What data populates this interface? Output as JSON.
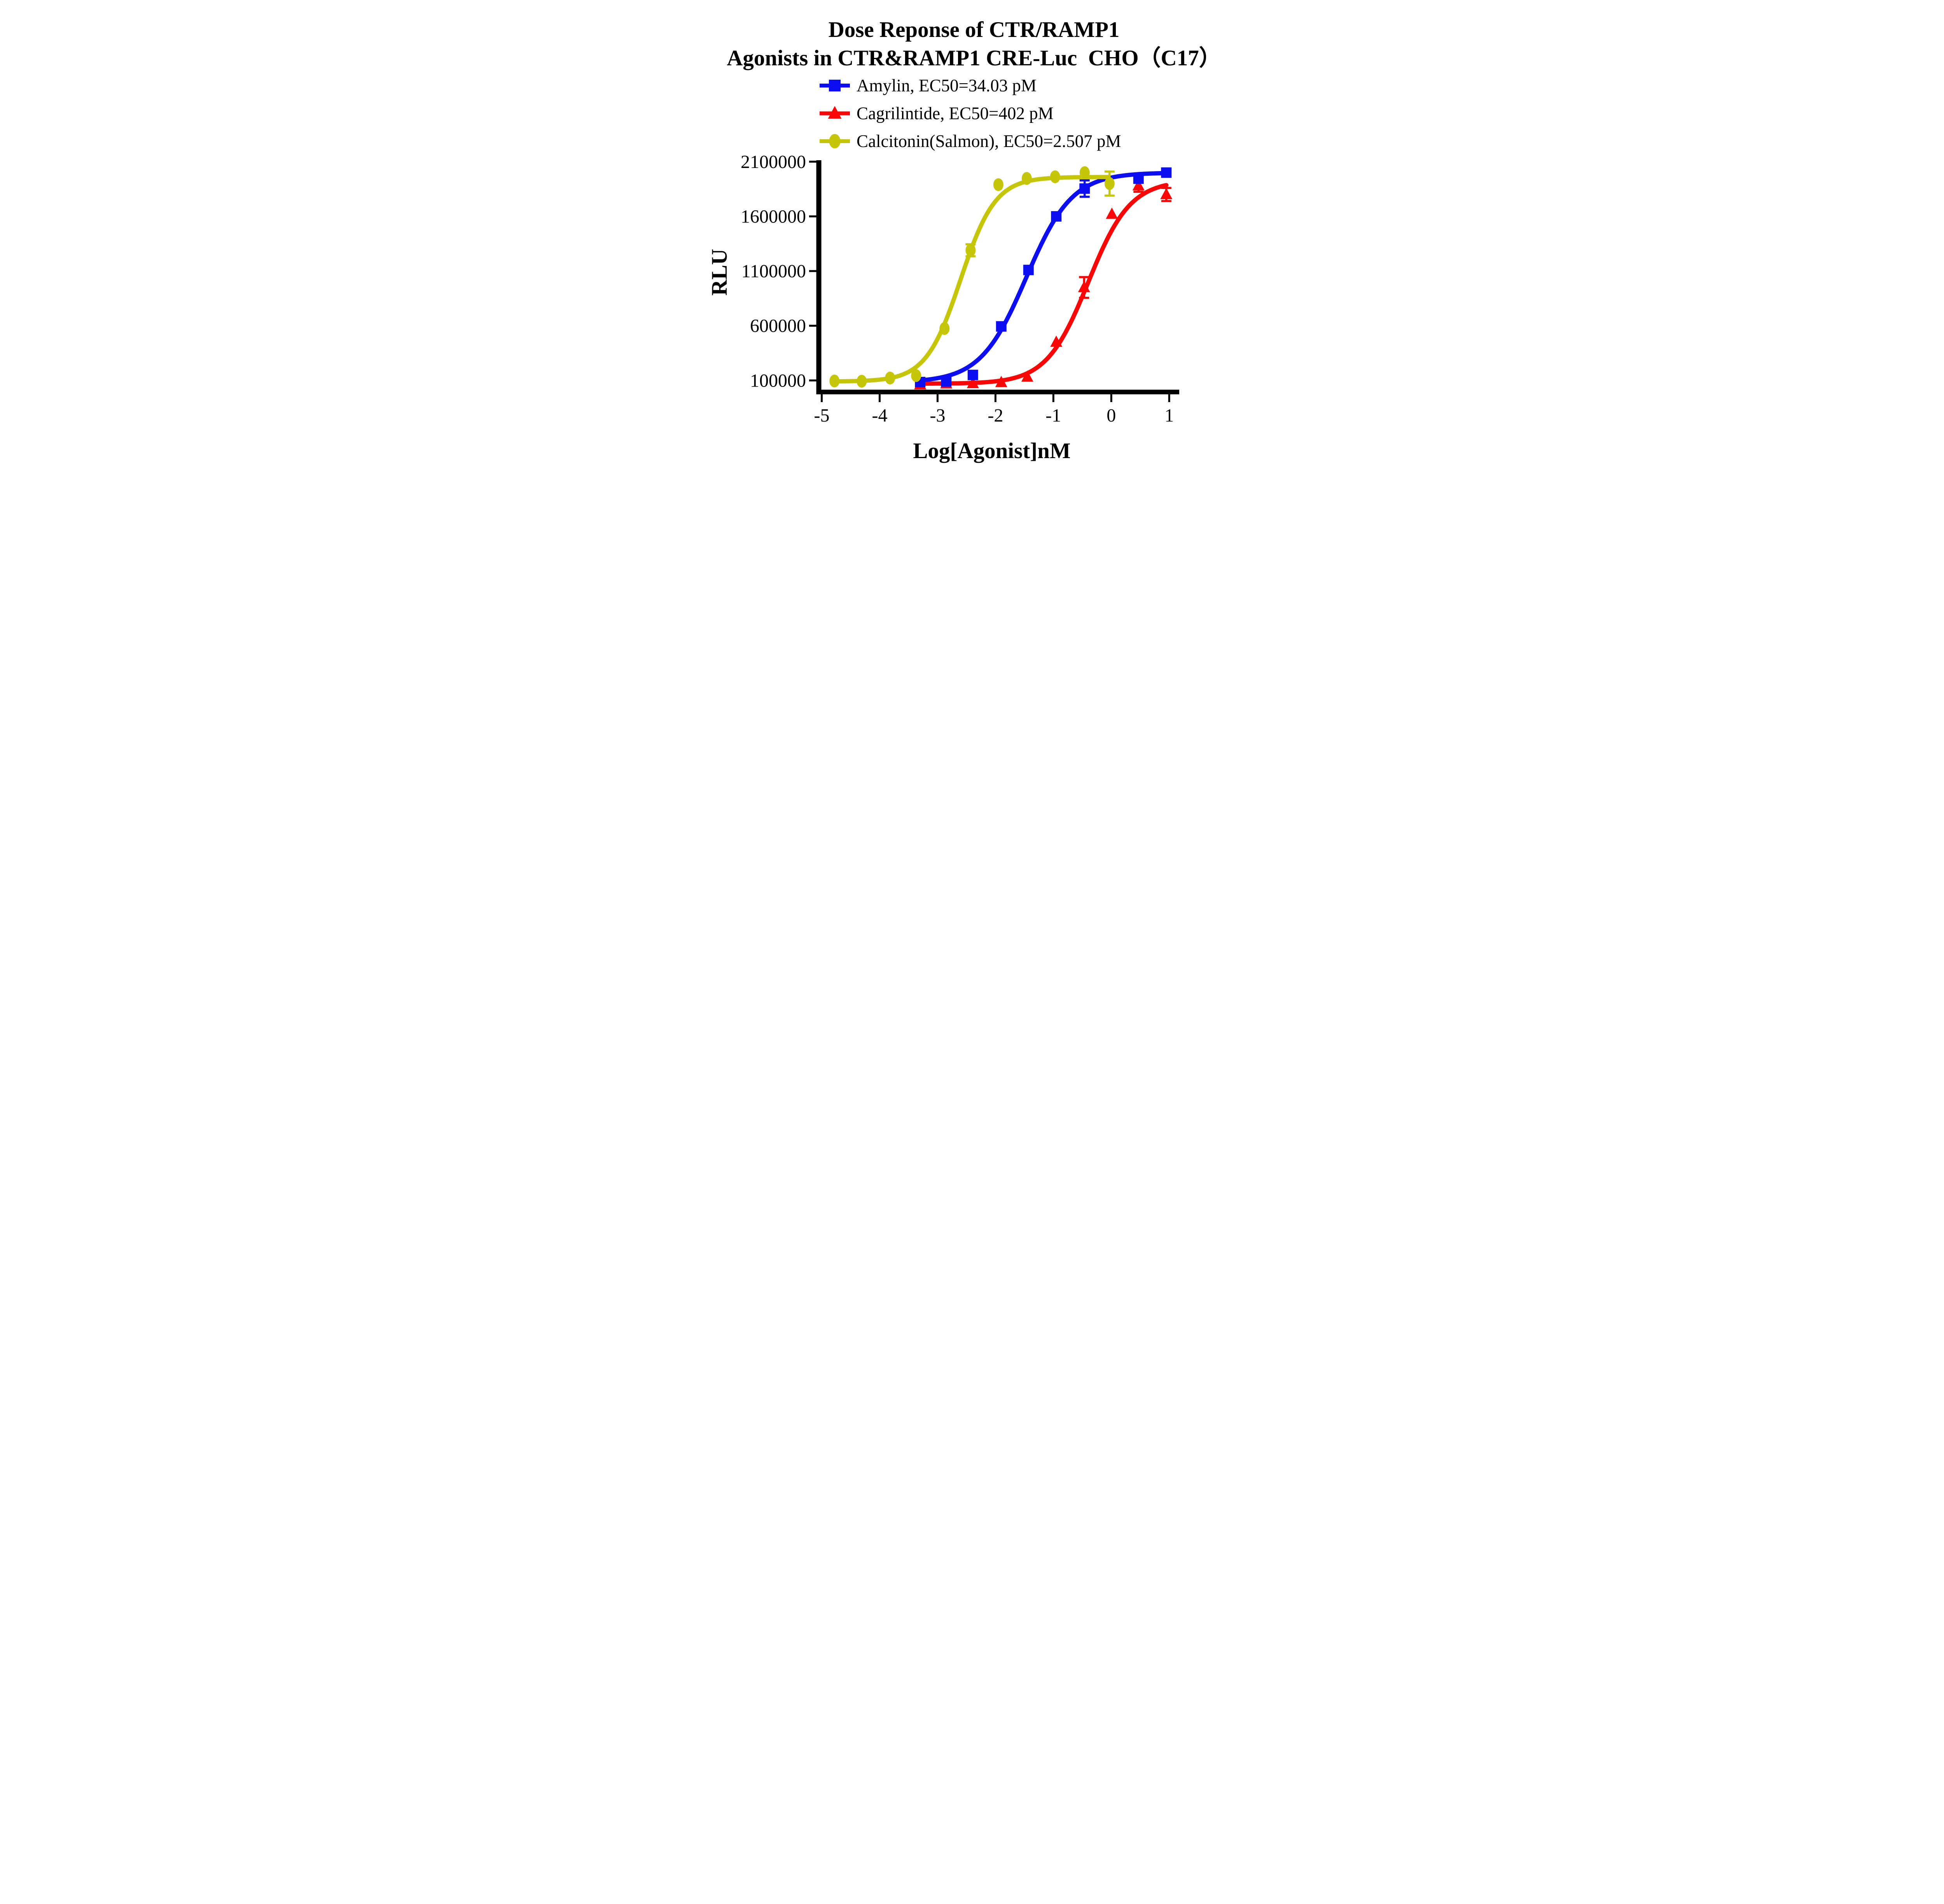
{
  "title": {
    "line1": "Dose Reponse of CTR/RAMP1",
    "line2": "Agonists in CTR&RAMP1 CRE-Luc  CHO（C17）"
  },
  "chart_data": {
    "type": "line",
    "title": "Dose Reponse of CTR/RAMP1 Agonists in CTR&RAMP1 CRE-Luc CHO（C17）",
    "xlabel": "Log[Agonist]nM",
    "ylabel": "RLU",
    "xlim": [
      -5,
      1.17
    ],
    "ylim": [
      100000,
      2100000
    ],
    "grid": false,
    "legend_position": "top",
    "xticks": [
      {
        "value": -5,
        "label": "-5"
      },
      {
        "value": -4,
        "label": "-4"
      },
      {
        "value": -3,
        "label": "-3"
      },
      {
        "value": -2,
        "label": "-2"
      },
      {
        "value": -1,
        "label": "-1"
      },
      {
        "value": 0,
        "label": "0"
      },
      {
        "value": 1,
        "label": "1"
      }
    ],
    "yticks": [
      {
        "value": 100000,
        "label": "100000"
      },
      {
        "value": 600000,
        "label": "600000"
      },
      {
        "value": 1100000,
        "label": "1100000"
      },
      {
        "value": 1600000,
        "label": "1600000"
      },
      {
        "value": 2100000,
        "label": "2100000"
      }
    ],
    "series": [
      {
        "id": "cagrilintide",
        "name": "Cagrilintide",
        "legend_label": "Cagrilintide,  EC50=402 pM",
        "ec50": "402 pM",
        "color": "#FA0606",
        "marker": "triangle",
        "points": [
          {
            "x": -3.3,
            "y": 62000
          },
          {
            "x": -2.85,
            "y": 70000
          },
          {
            "x": -2.39,
            "y": 72000
          },
          {
            "x": -1.9,
            "y": 82000
          },
          {
            "x": -1.45,
            "y": 131000
          },
          {
            "x": -0.95,
            "y": 450000
          },
          {
            "x": -0.47,
            "y": 950000,
            "err": 95000
          },
          {
            "x": 0.01,
            "y": 1620000
          },
          {
            "x": 0.47,
            "y": 1880000,
            "err": 55000
          },
          {
            "x": 0.95,
            "y": 1800000,
            "err": 60000
          }
        ],
        "fit_curve": {
          "bottom": 70000,
          "top": 1930000,
          "logEC50": -0.396,
          "hill": 1.2,
          "xmin": -3.34,
          "xmax": 0.97
        }
      },
      {
        "id": "amylin",
        "name": "Amylin",
        "legend_label": "Amylin,  EC50=34.03 pM",
        "ec50": "34.03 pM",
        "color": "#0D0DF2",
        "marker": "square",
        "points": [
          {
            "x": -3.3,
            "y": 85000
          },
          {
            "x": -2.85,
            "y": 90000
          },
          {
            "x": -2.39,
            "y": 150000
          },
          {
            "x": -1.9,
            "y": 594000
          },
          {
            "x": -1.43,
            "y": 1110000
          },
          {
            "x": -0.95,
            "y": 1600000
          },
          {
            "x": -0.46,
            "y": 1854000,
            "err": 75000
          },
          {
            "x": 0.47,
            "y": 1945000
          },
          {
            "x": 0.95,
            "y": 2000000
          }
        ],
        "fit_curve": {
          "bottom": 82000,
          "top": 2000000,
          "logEC50": -1.468,
          "hill": 1.1,
          "xmin": -3.34,
          "xmax": 0.97
        }
      },
      {
        "id": "calcitonin-salmon",
        "name": "Calcitonin(Salmon)",
        "legend_label": "Calcitonin(Salmon),  EC50=2.507 pM",
        "ec50": "2.507 pM",
        "color": "#C5C50A",
        "marker": "circle",
        "points": [
          {
            "x": -4.78,
            "y": 95000
          },
          {
            "x": -4.31,
            "y": 93000
          },
          {
            "x": -3.82,
            "y": 122000
          },
          {
            "x": -3.37,
            "y": 144000
          },
          {
            "x": -2.88,
            "y": 575000
          },
          {
            "x": -2.43,
            "y": 1290000,
            "err": 55000
          },
          {
            "x": -1.95,
            "y": 1890000
          },
          {
            "x": -1.46,
            "y": 1947000
          },
          {
            "x": -0.97,
            "y": 1962000
          },
          {
            "x": -0.46,
            "y": 2000000
          },
          {
            "x": -0.03,
            "y": 1900000,
            "err": 110000
          }
        ],
        "fit_curve": {
          "bottom": 90000,
          "top": 1960000,
          "logEC50": -2.601,
          "hill": 1.45,
          "xmin": -4.82,
          "xmax": -0.03
        }
      }
    ],
    "legend_order": [
      "amylin",
      "cagrilintide",
      "calcitonin-salmon"
    ]
  }
}
